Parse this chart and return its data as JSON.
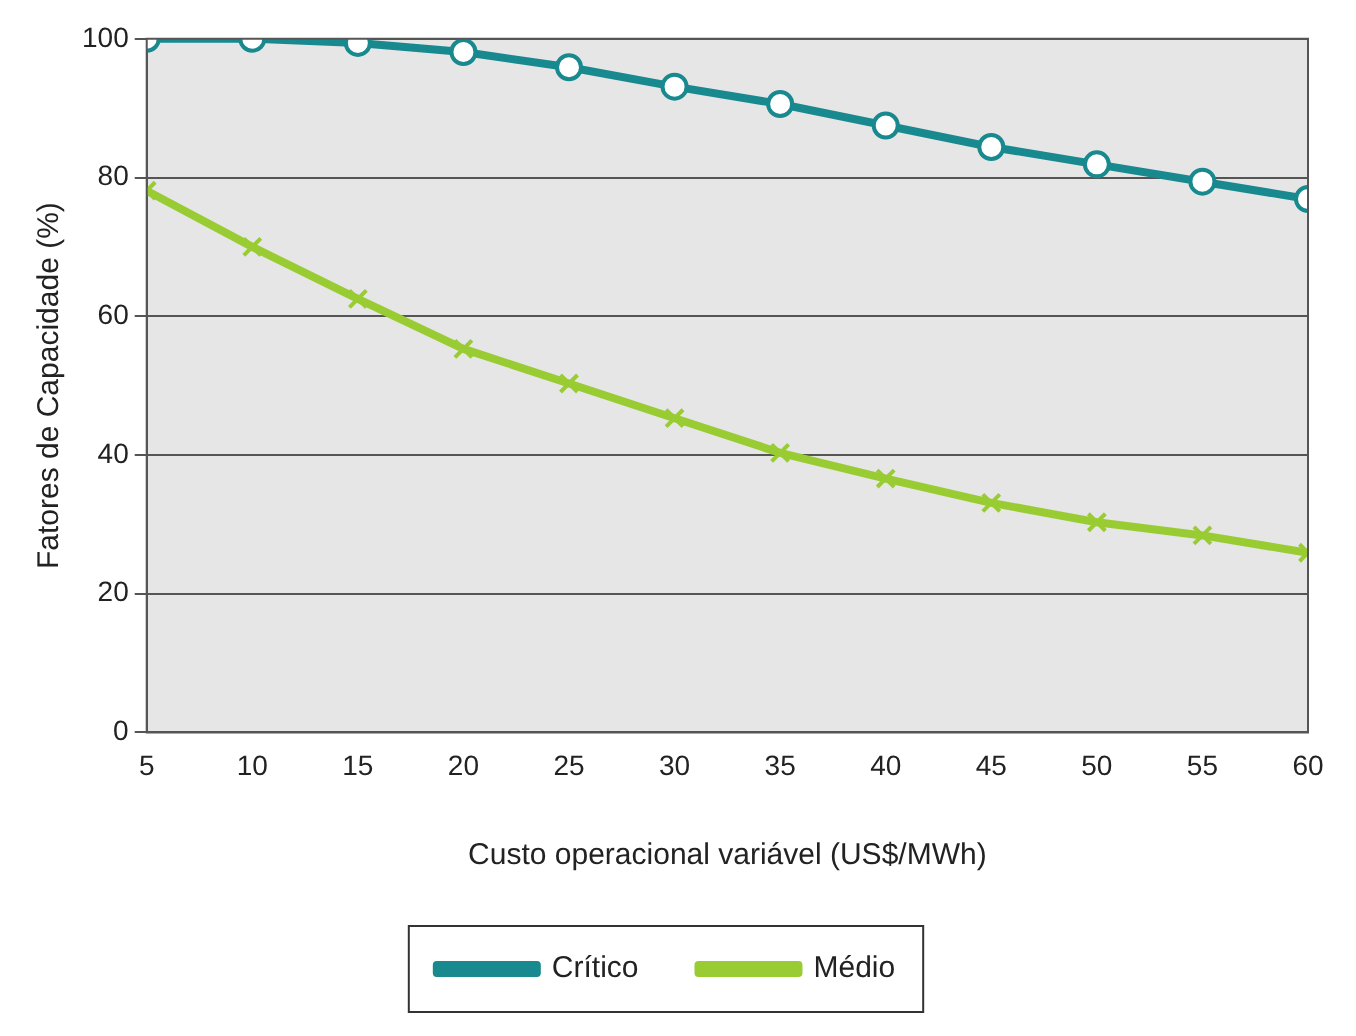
{
  "chart_data": {
    "type": "line",
    "xlabel": "Custo operacional variável (US$/MWh)",
    "ylabel": "Fatores de Capacidade (%)",
    "x": [
      5,
      10,
      15,
      20,
      25,
      30,
      35,
      40,
      45,
      50,
      55,
      60
    ],
    "series": [
      {
        "name": "Crítico",
        "color": "#18898e",
        "marker": "circle",
        "values": [
          100,
          100,
          99.4,
          98.1,
          95.9,
          93.1,
          90.6,
          87.5,
          84.4,
          81.9,
          79.4,
          76.9
        ]
      },
      {
        "name": "Médio",
        "color": "#99cc33",
        "marker": "cross",
        "values": [
          78.1,
          70,
          62.5,
          55.3,
          50.3,
          45.3,
          40.3,
          36.6,
          33.1,
          30.3,
          28.4,
          25.9
        ]
      }
    ],
    "xlim": [
      5,
      60
    ],
    "xticks": [
      5,
      10,
      15,
      20,
      25,
      30,
      35,
      40,
      45,
      50,
      55,
      60
    ],
    "ylim": [
      0,
      100
    ],
    "yticks": [
      0,
      20,
      40,
      60,
      80,
      100
    ],
    "grid": "y",
    "legend": "bottom"
  }
}
